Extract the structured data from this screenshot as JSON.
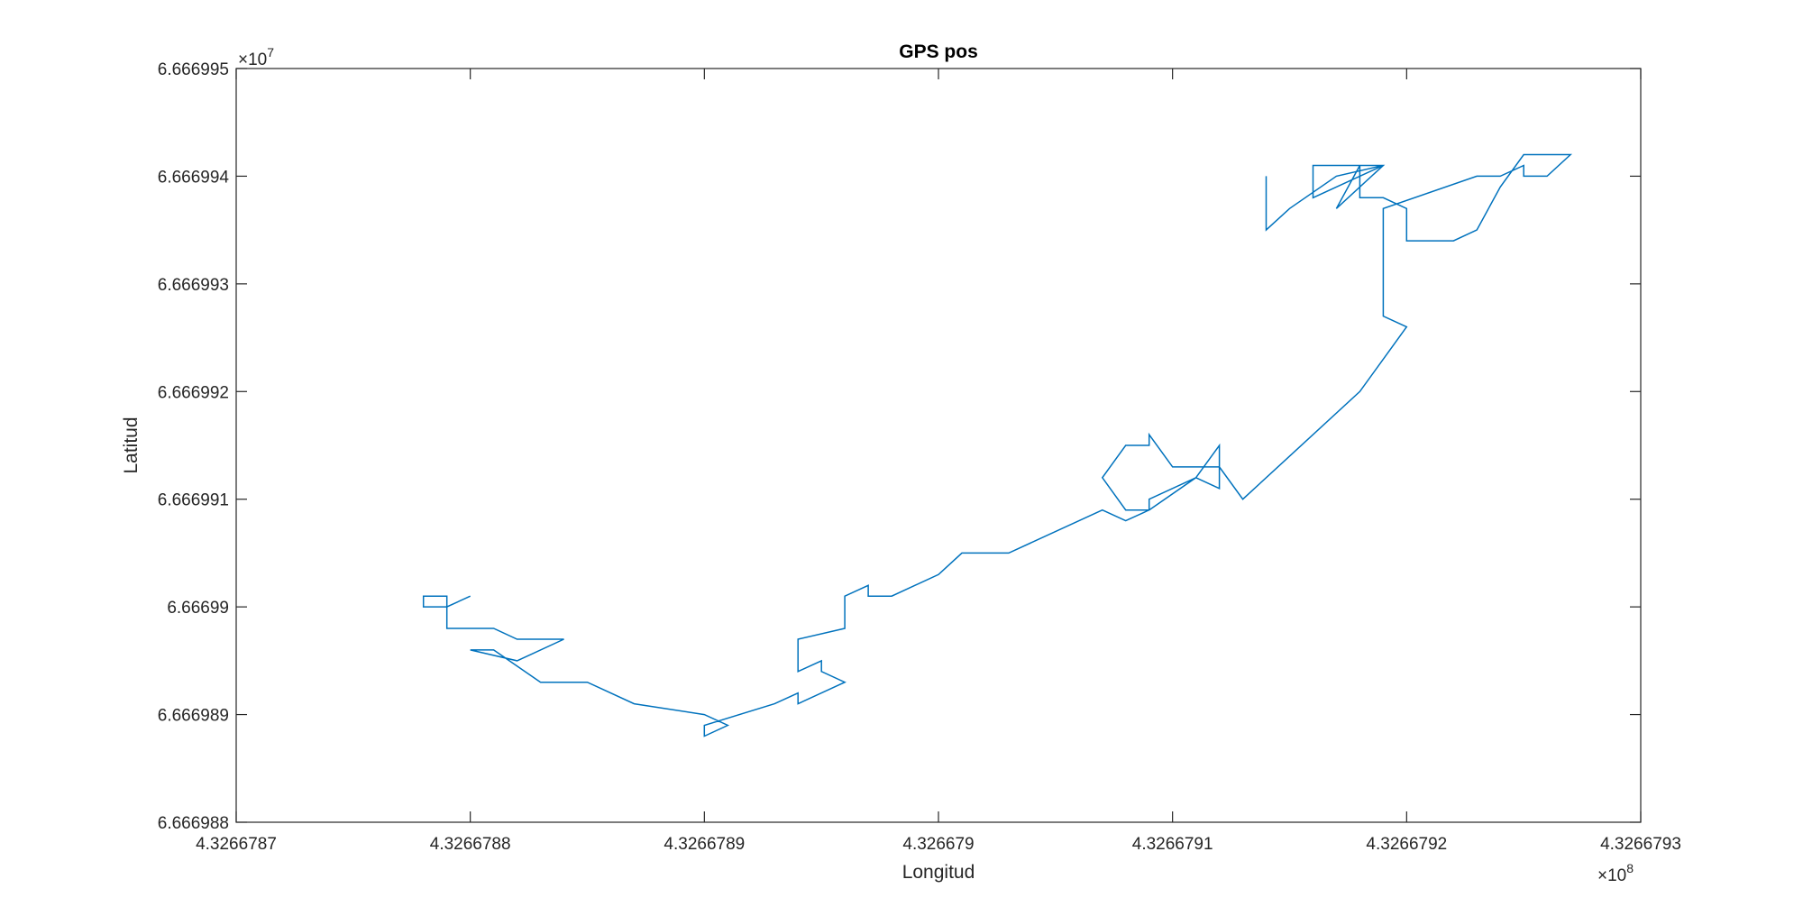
{
  "chart_data": {
    "type": "line",
    "title": "GPS pos",
    "xlabel": "Longitud",
    "ylabel": "Latitud",
    "x_multiplier": {
      "base": "×10",
      "exp": "8"
    },
    "y_multiplier": {
      "base": "×10",
      "exp": "7"
    },
    "xlim": [
      4.3266787,
      4.3266793
    ],
    "ylim": [
      6.666988,
      6.666995
    ],
    "x_ticks": [
      4.3266787,
      4.3266788,
      4.3266789,
      4.326679,
      4.3266791,
      4.3266792,
      4.3266793
    ],
    "x_tick_labels": [
      "4.3266787",
      "4.3266788",
      "4.3266789",
      "4.326679",
      "4.3266791",
      "4.3266792",
      "4.3266793"
    ],
    "y_ticks": [
      6.666988,
      6.666989,
      6.66699,
      6.666991,
      6.666992,
      6.666993,
      6.666994,
      6.666995
    ],
    "y_tick_labels": [
      "6.666988",
      "6.666989",
      "6.66699",
      "6.666991",
      "6.666992",
      "6.666993",
      "6.666994",
      "6.666995"
    ],
    "grid": false,
    "series_color": "#0072BD",
    "series": [
      {
        "x": [
          4.3266788,
          4.32667879,
          4.32667878,
          4.32667878,
          4.32667879,
          4.32667879,
          4.32667881,
          4.32667882,
          4.32667884,
          4.32667882,
          4.3266788,
          4.32667881,
          4.32667883,
          4.32667885,
          4.32667887,
          4.3266789,
          4.32667891,
          4.3266789,
          4.3266789,
          4.32667893,
          4.32667894,
          4.32667894,
          4.32667896,
          4.32667895,
          4.32667895,
          4.32667894,
          4.32667894,
          4.32667896,
          4.32667896,
          4.32667897,
          4.32667897,
          4.32667898,
          4.326679,
          4.32667901,
          4.32667903,
          4.32667907,
          4.32667908,
          4.32667909,
          4.32667909,
          4.32667911,
          4.32667912,
          4.32667912,
          4.32667911,
          4.32667909,
          4.32667908,
          4.32667907,
          4.32667908,
          4.32667909,
          4.32667909,
          4.3266791,
          4.32667912,
          4.32667913,
          4.32667918,
          4.3266792,
          4.32667919,
          4.32667919,
          4.32667923,
          4.32667924,
          4.32667925,
          4.32667925,
          4.32667926,
          4.32667927,
          4.32667925,
          4.32667924,
          4.32667923,
          4.32667922,
          4.32667922,
          4.3266792,
          4.3266792,
          4.32667919,
          4.32667918,
          4.32667918,
          4.32667917,
          4.32667919,
          4.32667916,
          4.32667916,
          4.32667919,
          4.32667917,
          4.32667915,
          4.32667914,
          4.32667914
        ],
        "y": [
          6.6669901,
          6.66699,
          6.66699,
          6.6669901,
          6.6669901,
          6.6669898,
          6.6669898,
          6.6669897,
          6.6669897,
          6.6669895,
          6.6669896,
          6.6669896,
          6.6669893,
          6.6669893,
          6.6669891,
          6.666989,
          6.6669889,
          6.6669888,
          6.6669889,
          6.6669891,
          6.6669892,
          6.6669891,
          6.6669893,
          6.6669894,
          6.6669895,
          6.6669894,
          6.6669897,
          6.6669898,
          6.6669901,
          6.6669902,
          6.6669901,
          6.6669901,
          6.6669903,
          6.6669905,
          6.6669905,
          6.6669909,
          6.6669908,
          6.6669909,
          6.666991,
          6.6669912,
          6.6669911,
          6.6669915,
          6.6669912,
          6.6669909,
          6.6669909,
          6.6669912,
          6.6669915,
          6.6669915,
          6.6669916,
          6.6669913,
          6.6669913,
          6.666991,
          6.666992,
          6.6669926,
          6.6669927,
          6.6669937,
          6.666994,
          6.666994,
          6.6669941,
          6.666994,
          6.666994,
          6.6669942,
          6.6669942,
          6.6669939,
          6.6669935,
          6.6669934,
          6.6669934,
          6.6669934,
          6.6669937,
          6.6669938,
          6.6669938,
          6.6669941,
          6.6669937,
          6.6669941,
          6.6669941,
          6.6669938,
          6.6669941,
          6.666994,
          6.6669937,
          6.6669935,
          6.666994
        ]
      }
    ]
  }
}
